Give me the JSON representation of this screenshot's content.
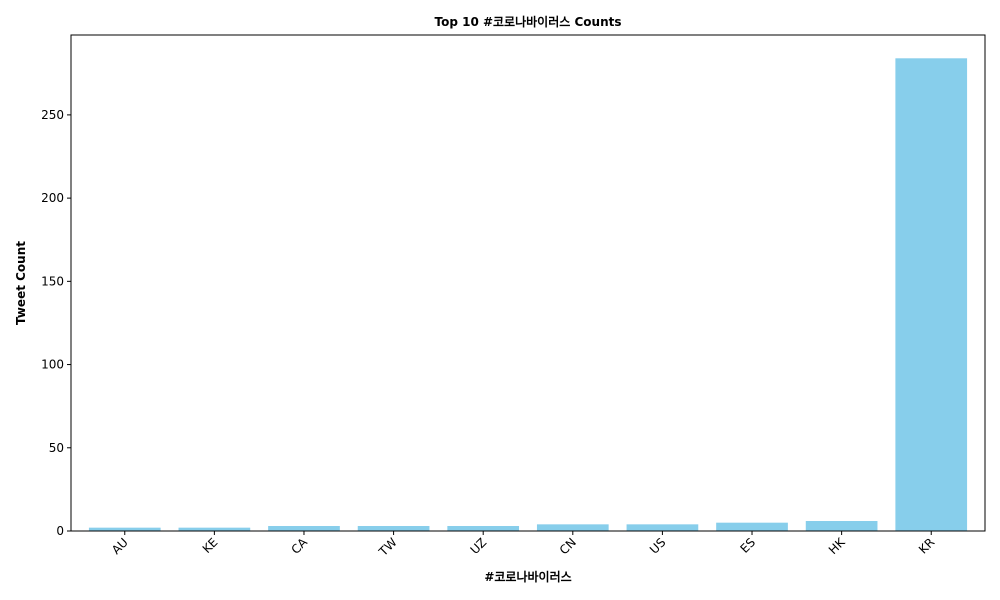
{
  "chart_data": {
    "type": "bar",
    "title": "Top 10 #코로나바이러스 Counts",
    "xlabel": "#코로나바이러스",
    "ylabel": "Tweet Count",
    "categories": [
      "AU",
      "KE",
      "CA",
      "TW",
      "UZ",
      "CN",
      "US",
      "ES",
      "HK",
      "KR"
    ],
    "values": [
      2,
      2,
      3,
      3,
      3,
      4,
      4,
      5,
      6,
      284
    ],
    "ylim": [
      0,
      298
    ],
    "yticks": [
      0,
      50,
      100,
      150,
      200,
      250
    ],
    "bar_color": "#87ceeb",
    "grid": false,
    "legend": false
  }
}
